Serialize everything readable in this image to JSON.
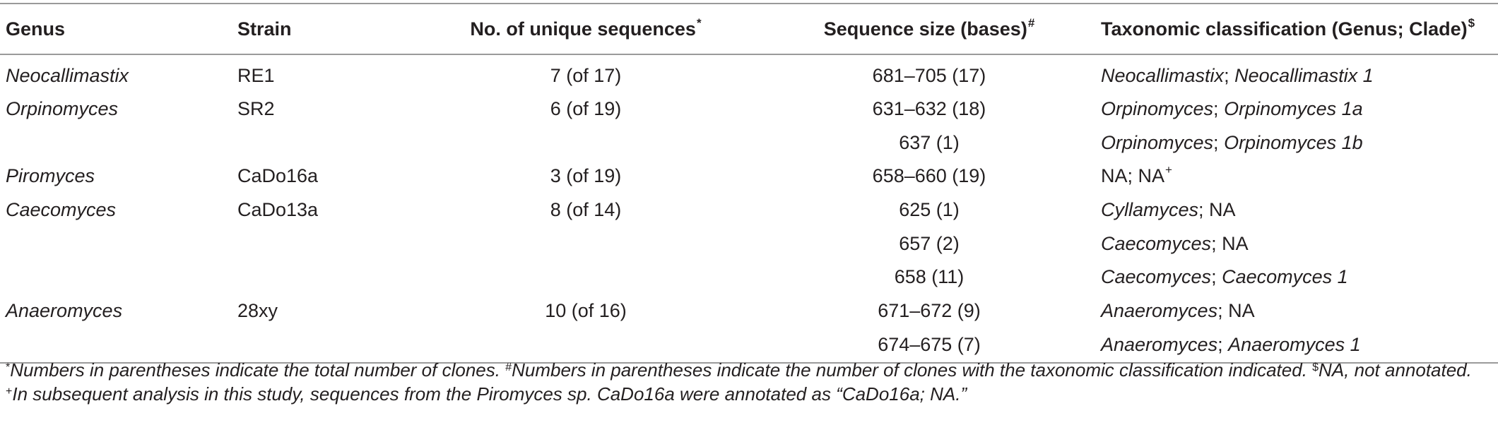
{
  "table": {
    "headers": {
      "genus": "Genus",
      "strain": "Strain",
      "unique": "No. of unique sequences",
      "unique_mark": "*",
      "size": "Sequence size (bases)",
      "size_mark": "#",
      "taxonomy": "Taxonomic classification (Genus; Clade)",
      "taxonomy_mark": "$"
    },
    "rows": [
      {
        "genus": "Neocallimastix",
        "strain": "RE1",
        "unique": "7 (of 17)",
        "size": "681–705 (17)",
        "tax_genus": "Neocallimastix",
        "tax_sep": "; ",
        "tax_clade": "Neocallimastix 1",
        "tax_clade_mark": ""
      },
      {
        "genus": "Orpinomyces",
        "strain": "SR2",
        "unique": "6 (of 19)",
        "size": "631–632 (18)",
        "tax_genus": "Orpinomyces",
        "tax_sep": "; ",
        "tax_clade": "Orpinomyces 1a",
        "tax_clade_mark": ""
      },
      {
        "genus": "",
        "strain": "",
        "unique": "",
        "size": "637 (1)",
        "tax_genus": "Orpinomyces",
        "tax_sep": "; ",
        "tax_clade": "Orpinomyces 1b",
        "tax_clade_mark": ""
      },
      {
        "genus": "Piromyces",
        "strain": "CaDo16a",
        "unique": "3 (of 19)",
        "size": "658–660 (19)",
        "tax_genus": "NA",
        "tax_sep": "; ",
        "tax_clade": "NA",
        "tax_clade_mark": "+"
      },
      {
        "genus": "Caecomyces",
        "strain": "CaDo13a",
        "unique": "8 (of 14)",
        "size": "625 (1)",
        "tax_genus": "Cyllamyces",
        "tax_sep": "; ",
        "tax_clade": "NA",
        "tax_clade_mark": ""
      },
      {
        "genus": "",
        "strain": "",
        "unique": "",
        "size": "657 (2)",
        "tax_genus": "Caecomyces",
        "tax_sep": "; ",
        "tax_clade": "NA",
        "tax_clade_mark": ""
      },
      {
        "genus": "",
        "strain": "",
        "unique": "",
        "size": "658 (11)",
        "tax_genus": "Caecomyces",
        "tax_sep": "; ",
        "tax_clade": "Caecomyces 1",
        "tax_clade_mark": ""
      },
      {
        "genus": "Anaeromyces",
        "strain": "28xy",
        "unique": "10 (of 16)",
        "size": "671–672 (9)",
        "tax_genus": "Anaeromyces",
        "tax_sep": "; ",
        "tax_clade": "NA",
        "tax_clade_mark": ""
      },
      {
        "genus": "",
        "strain": "",
        "unique": "",
        "size": "674–675 (7)",
        "tax_genus": "Anaeromyces",
        "tax_sep": "; ",
        "tax_clade": "Anaeromyces 1",
        "tax_clade_mark": ""
      }
    ]
  },
  "footnotes": {
    "star_mark": "*",
    "star_text": "Numbers in parentheses indicate the total number of clones. ",
    "hash_mark": "#",
    "hash_text": "Numbers in parentheses indicate the number of clones with the taxonomic classification indicated. ",
    "dollar_mark": "$",
    "dollar_text": "NA, not annotated. ",
    "plus_mark": "+",
    "plus_text": "In subsequent analysis in this study, sequences from the Piromyces sp. CaDo16a were annotated as “CaDo16a; NA.”"
  }
}
